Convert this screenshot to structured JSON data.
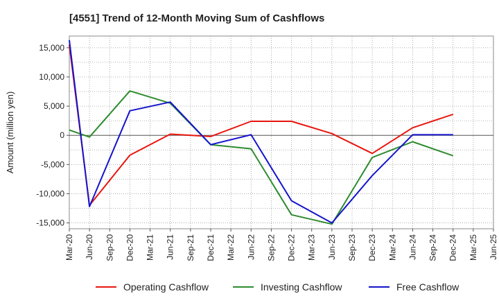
{
  "chart_data": {
    "type": "line",
    "title": "[4551]  Trend of 12-Month Moving Sum of Cashflows",
    "ylabel": "Amount (million yen)",
    "xlabel": "",
    "x": [
      "Mar-20",
      "Jun-20",
      "Sep-20",
      "Dec-20",
      "Mar-21",
      "Jun-21",
      "Sep-21",
      "Dec-21",
      "Mar-22",
      "Jun-22",
      "Sep-22",
      "Dec-22",
      "Mar-23",
      "Jun-23",
      "Sep-23",
      "Dec-23",
      "Mar-24",
      "Jun-24",
      "Sep-24",
      "Dec-24",
      "Mar-25",
      "Jun-25"
    ],
    "ylim": [
      -16000,
      17000
    ],
    "yticks": [
      -15000,
      -10000,
      -5000,
      0,
      5000,
      10000,
      15000
    ],
    "ytick_labels": [
      "-15,000",
      "-10,000",
      "-5,000",
      "0",
      "5,000",
      "10,000",
      "15,000"
    ],
    "grid": true,
    "legend_position": "bottom",
    "series": [
      {
        "name": "Operating Cashflow",
        "color": "#e8150f",
        "values": [
          15500,
          -12000,
          null,
          -3400,
          null,
          200,
          null,
          -200,
          null,
          2400,
          null,
          2400,
          null,
          300,
          null,
          -3100,
          null,
          1300,
          null,
          3600,
          null,
          null
        ]
      },
      {
        "name": "Investing Cashflow",
        "color": "#2e8b2e",
        "values": [
          900,
          -300,
          null,
          7600,
          null,
          5500,
          null,
          -1600,
          null,
          -2300,
          null,
          -13600,
          null,
          -15200,
          null,
          -3800,
          null,
          -1100,
          null,
          -3500,
          null,
          null
        ]
      },
      {
        "name": "Free Cashflow",
        "color": "#1414cc",
        "values": [
          16300,
          -12200,
          null,
          4200,
          null,
          5700,
          null,
          -1600,
          null,
          100,
          null,
          -11200,
          null,
          -15000,
          null,
          -6900,
          null,
          100,
          null,
          100,
          null,
          null
        ]
      }
    ]
  }
}
